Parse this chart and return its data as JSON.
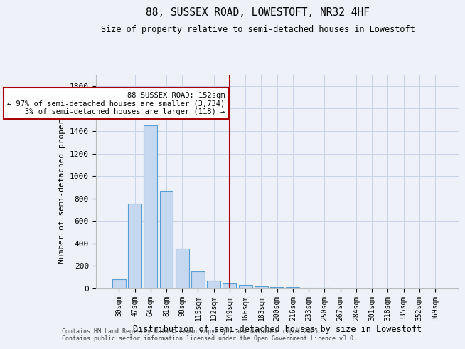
{
  "title_line1": "88, SUSSEX ROAD, LOWESTOFT, NR32 4HF",
  "title_line2": "Size of property relative to semi-detached houses in Lowestoft",
  "xlabel": "Distribution of semi-detached houses by size in Lowestoft",
  "ylabel": "Number of semi-detached properties",
  "categories": [
    "30sqm",
    "47sqm",
    "64sqm",
    "81sqm",
    "98sqm",
    "115sqm",
    "132sqm",
    "149sqm",
    "166sqm",
    "183sqm",
    "200sqm",
    "216sqm",
    "233sqm",
    "250sqm",
    "267sqm",
    "284sqm",
    "301sqm",
    "318sqm",
    "335sqm",
    "352sqm",
    "369sqm"
  ],
  "values": [
    85,
    755,
    1450,
    865,
    355,
    150,
    70,
    45,
    30,
    22,
    15,
    10,
    8,
    5,
    3,
    2,
    1,
    1,
    0,
    0,
    0
  ],
  "bar_color": "#c5d8f0",
  "bar_edge_color": "#5a9fd4",
  "vline_x_idx": 7,
  "vline_color": "#aa0000",
  "annotation_text": "88 SUSSEX ROAD: 152sqm\n← 97% of semi-detached houses are smaller (3,734)\n3% of semi-detached houses are larger (118) →",
  "annotation_box_color": "#aa0000",
  "annotation_bg": "#ffffff",
  "ylim": [
    0,
    1900
  ],
  "yticks": [
    0,
    200,
    400,
    600,
    800,
    1000,
    1200,
    1400,
    1600,
    1800
  ],
  "footer_line1": "Contains HM Land Registry data © Crown copyright and database right 2025.",
  "footer_line2": "Contains public sector information licensed under the Open Government Licence v3.0.",
  "bg_color": "#eef2f8",
  "grid_color": "#c8d4e8"
}
